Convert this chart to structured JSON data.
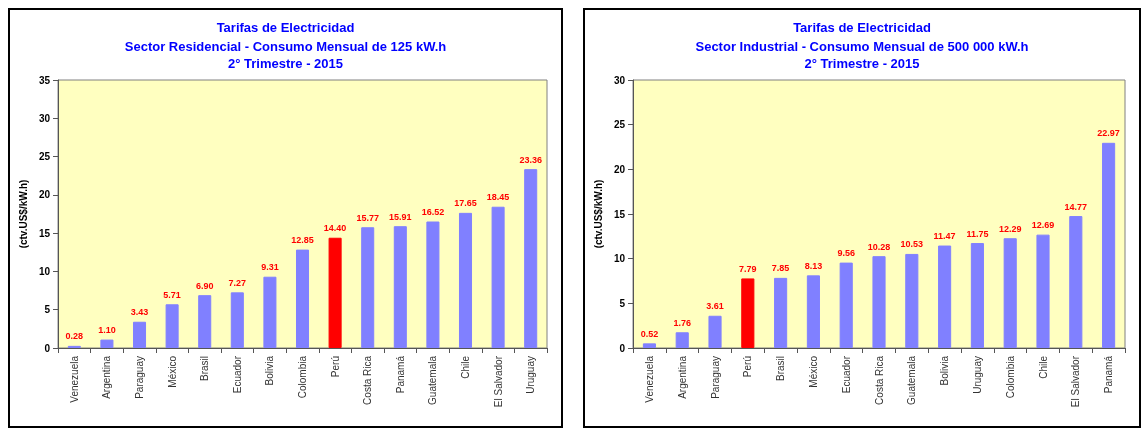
{
  "chart_data": [
    {
      "type": "bar",
      "title": "Tarifas de Electricidad",
      "subtitle": "Sector Residencial - Consumo Mensual de 125 kW.h\n2° Trimestre - 2015",
      "ylabel": "(ctv.US$/kW.h)",
      "categories": [
        "Venezuela",
        "Argentina",
        "Paraguay",
        "México",
        "Brasil",
        "Ecuador",
        "Bolivia",
        "Colombia",
        "Perú",
        "Costa Rica",
        "Panamá",
        "Guatemala",
        "Chile",
        "El Salvador",
        "Uruguay"
      ],
      "values": [
        0.28,
        1.1,
        3.43,
        5.71,
        6.9,
        7.27,
        9.31,
        12.85,
        14.4,
        15.77,
        15.91,
        16.52,
        17.65,
        18.45,
        23.36
      ],
      "value_labels": [
        "0.28",
        "1.10",
        "3.43",
        "5.71",
        "6.90",
        "7.27",
        "9.31",
        "12.85",
        "14.40",
        "15.77",
        "15.91",
        "16.52",
        "17.65",
        "18.45",
        "23.36"
      ],
      "colors": [
        "#8080ff",
        "#8080ff",
        "#8080ff",
        "#8080ff",
        "#8080ff",
        "#8080ff",
        "#8080ff",
        "#8080ff",
        "#ff0000",
        "#8080ff",
        "#8080ff",
        "#8080ff",
        "#8080ff",
        "#8080ff",
        "#8080ff"
      ],
      "ylim": [
        0,
        35
      ],
      "yticks": [
        0,
        5,
        10,
        15,
        20,
        25,
        30,
        35
      ]
    },
    {
      "type": "bar",
      "title": "Tarifas de Electricidad",
      "subtitle": "Sector Industrial - Consumo Mensual de 500 000 kW.h\n2° Trimestre - 2015",
      "ylabel": "(ctv.US$/kW.h)",
      "categories": [
        "Venezuela",
        "Argentina",
        "Paraguay",
        "Perú",
        "Brasil",
        "México",
        "Ecuador",
        "Costa Rica",
        "Guatemala",
        "Bolivia",
        "Uruguay",
        "Colombia",
        "Chile",
        "El Salvador",
        "Panamá"
      ],
      "values": [
        0.52,
        1.76,
        3.61,
        7.79,
        7.85,
        8.13,
        9.56,
        10.28,
        10.53,
        11.47,
        11.75,
        12.29,
        12.69,
        14.77,
        22.97
      ],
      "value_labels": [
        "0.52",
        "1.76",
        "3.61",
        "7.79",
        "7.85",
        "8.13",
        "9.56",
        "10.28",
        "10.53",
        "11.47",
        "11.75",
        "12.29",
        "12.69",
        "14.77",
        "22.97"
      ],
      "colors": [
        "#8080ff",
        "#8080ff",
        "#8080ff",
        "#ff0000",
        "#8080ff",
        "#8080ff",
        "#8080ff",
        "#8080ff",
        "#8080ff",
        "#8080ff",
        "#8080ff",
        "#8080ff",
        "#8080ff",
        "#8080ff",
        "#8080ff"
      ],
      "ylim": [
        0,
        30
      ],
      "yticks": [
        0,
        5,
        10,
        15,
        20,
        25,
        30
      ]
    }
  ]
}
